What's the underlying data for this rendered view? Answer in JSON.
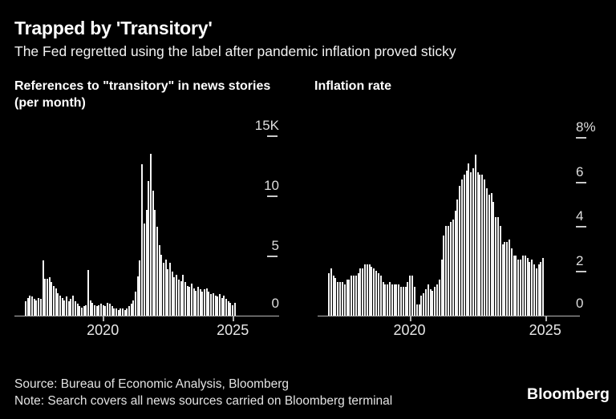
{
  "header": {
    "title": "Trapped by 'Transitory'",
    "subtitle": "The Fed regretted using the label after pandemic inflation proved sticky"
  },
  "footer": {
    "source": "Source: Bureau of Economic Analysis, Bloomberg",
    "note": "Note: Search covers all news sources carried on Bloomberg terminal",
    "logo": "Bloomberg"
  },
  "colors": {
    "background": "#000000",
    "bar": "#f4f4f4",
    "axis": "#b9b9b9",
    "text": "#ffffff",
    "tick_text": "#dedede"
  },
  "chart_data": [
    {
      "type": "bar",
      "title": "References to \"transitory\" in news stories (per month)",
      "ylabel": "",
      "xlabel": "",
      "unit": "thousands of news stories per month",
      "frequency": "monthly",
      "x_start_month": "2017-01",
      "x_end_month": "2025-02",
      "ylim": [
        0,
        15
      ],
      "grid": false,
      "legend": "none",
      "yticks": [
        {
          "label": "15K",
          "value": 15
        },
        {
          "label": "10",
          "value": 10
        },
        {
          "label": "5",
          "value": 5
        },
        {
          "label": "0",
          "value": 0
        }
      ],
      "xticks": [
        {
          "label": "2020",
          "month_index": 36
        },
        {
          "label": "2025",
          "month_index": 96
        }
      ],
      "values": [
        1.2,
        1.5,
        1.7,
        1.6,
        1.4,
        1.3,
        1.5,
        1.4,
        4.6,
        3.1,
        3.1,
        3.2,
        2.8,
        2.5,
        2.3,
        1.9,
        1.7,
        1.5,
        1.3,
        1.6,
        1.2,
        1.4,
        1.7,
        1.2,
        1.0,
        0.8,
        0.7,
        0.8,
        0.9,
        3.8,
        1.3,
        1.1,
        0.9,
        0.8,
        0.9,
        1.0,
        0.9,
        0.8,
        1.1,
        1.0,
        0.8,
        0.6,
        0.6,
        0.5,
        0.6,
        0.6,
        0.5,
        0.6,
        0.8,
        1.0,
        1.3,
        2.0,
        3.3,
        4.6,
        12.6,
        7.7,
        8.8,
        11.2,
        13.5,
        10.4,
        8.8,
        7.4,
        5.9,
        5.1,
        4.4,
        4.7,
        3.9,
        4.4,
        3.7,
        3.2,
        3.4,
        3.0,
        2.9,
        3.4,
        2.8,
        2.5,
        2.4,
        2.7,
        2.3,
        2.1,
        2.4,
        2.2,
        2.0,
        2.2,
        2.3,
        2.0,
        1.8,
        1.9,
        1.7,
        1.6,
        1.8,
        1.5,
        1.7,
        1.4,
        1.2,
        1.1,
        0.9,
        1.1
      ]
    },
    {
      "type": "bar",
      "title": "Inflation rate",
      "ylabel": "",
      "xlabel": "",
      "unit": "percent, year over year",
      "frequency": "monthly",
      "x_start_month": "2017-01",
      "x_end_month": "2024-12",
      "ylim": [
        0,
        8
      ],
      "grid": false,
      "legend": "none",
      "yticks": [
        {
          "label": "8%",
          "value": 8
        },
        {
          "label": "6",
          "value": 6
        },
        {
          "label": "4",
          "value": 4
        },
        {
          "label": "2",
          "value": 2
        },
        {
          "label": "0",
          "value": 0
        }
      ],
      "xticks": [
        {
          "label": "2020",
          "month_index": 36
        },
        {
          "label": "2025",
          "month_index": 96
        }
      ],
      "values": [
        1.9,
        2.1,
        1.8,
        1.7,
        1.5,
        1.5,
        1.5,
        1.4,
        1.6,
        1.6,
        1.8,
        1.8,
        1.8,
        1.9,
        2.1,
        2.1,
        2.3,
        2.3,
        2.3,
        2.2,
        2.1,
        2.0,
        1.9,
        1.8,
        1.5,
        1.4,
        1.4,
        1.5,
        1.4,
        1.4,
        1.4,
        1.4,
        1.3,
        1.3,
        1.3,
        1.5,
        1.8,
        1.8,
        1.3,
        0.5,
        0.5,
        0.9,
        1.0,
        1.2,
        1.4,
        1.2,
        1.1,
        1.3,
        1.4,
        1.6,
        2.5,
        3.6,
        4.0,
        4.0,
        4.2,
        4.3,
        4.7,
        5.2,
        5.8,
        6.1,
        6.3,
        6.5,
        6.8,
        6.4,
        6.6,
        7.2,
        6.4,
        6.3,
        6.3,
        6.1,
        5.7,
        5.4,
        5.5,
        5.1,
        4.4,
        4.4,
        4.0,
        3.2,
        3.3,
        3.3,
        3.4,
        3.0,
        2.7,
        2.7,
        2.5,
        2.5,
        2.7,
        2.7,
        2.6,
        2.4,
        2.5,
        2.3,
        2.1,
        2.3,
        2.4,
        2.6
      ]
    }
  ]
}
